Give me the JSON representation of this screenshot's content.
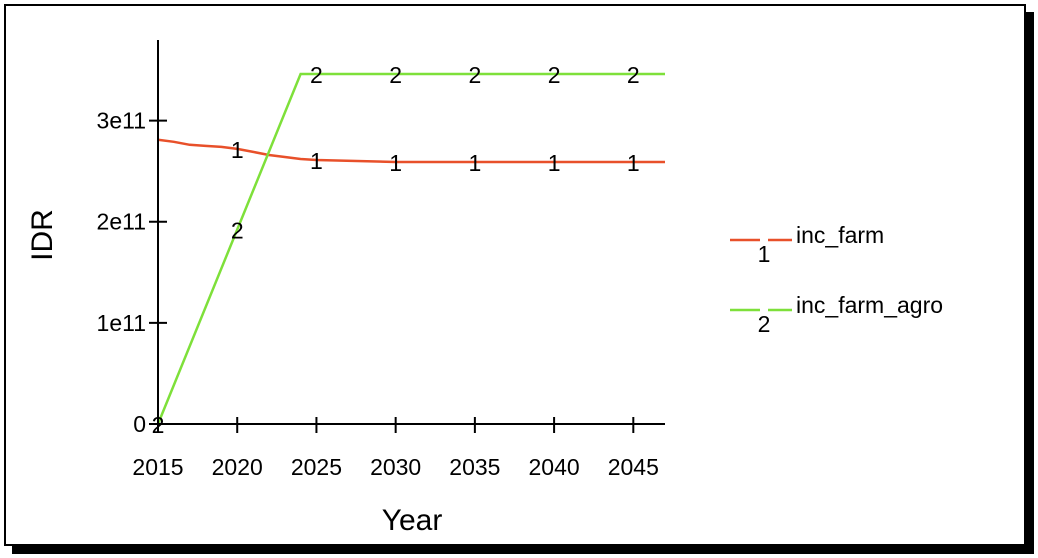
{
  "chart_data": {
    "type": "line",
    "xlabel": "Year",
    "ylabel": "IDR",
    "xlim": [
      2015,
      2047
    ],
    "ylim": [
      0,
      350000000000
    ],
    "x_ticks": [
      2015,
      2020,
      2025,
      2030,
      2035,
      2040,
      2045
    ],
    "x_tick_labels": [
      "2015",
      "2020",
      "2025",
      "2030",
      "2035",
      "2040",
      "2045"
    ],
    "y_ticks": [
      0,
      100000000000,
      200000000000,
      300000000000
    ],
    "y_tick_labels": [
      "0",
      "1e11",
      "2e11",
      "3e11"
    ],
    "grid": false,
    "legend_position": "right",
    "series": [
      {
        "name": "inc_farm",
        "marker_label": "1",
        "color": "#e8502a",
        "x": [
          2015,
          2016,
          2017,
          2018,
          2019,
          2020,
          2021,
          2022,
          2023,
          2024,
          2025,
          2030,
          2035,
          2040,
          2045,
          2047
        ],
        "values": [
          281000000000,
          279000000000,
          276000000000,
          275000000000,
          274000000000,
          272000000000,
          269000000000,
          266000000000,
          264000000000,
          262000000000,
          261000000000,
          259000000000,
          259000000000,
          259000000000,
          259000000000,
          259000000000
        ],
        "marker_x": [
          2020,
          2025,
          2030,
          2035,
          2040,
          2045
        ]
      },
      {
        "name": "inc_farm_agro",
        "marker_label": "2",
        "color": "#7ee03a",
        "x": [
          2015,
          2024,
          2025,
          2030,
          2035,
          2040,
          2045,
          2047
        ],
        "values": [
          0,
          346000000000,
          346000000000,
          346000000000,
          346000000000,
          346000000000,
          346000000000,
          346000000000
        ],
        "marker_x": [
          2015,
          2020,
          2025,
          2030,
          2035,
          2040,
          2045
        ]
      }
    ]
  }
}
